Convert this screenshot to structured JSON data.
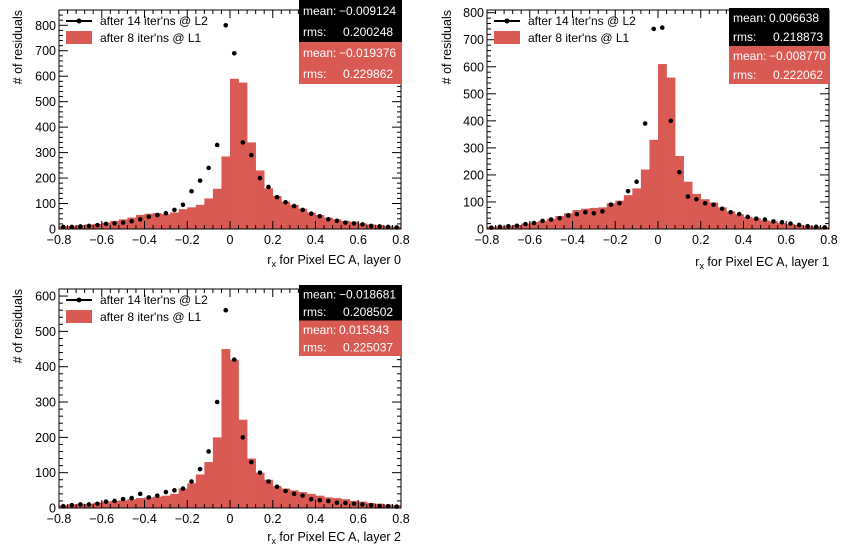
{
  "colors": {
    "hist": "#d95a53",
    "points": "#000000",
    "stats_dark": "#000000",
    "stats_text": "#ffffff"
  },
  "chart_data": [
    {
      "type": "bar",
      "subtype": "histogram-with-points",
      "ylabel": "# of residuals",
      "xlabel_main": "r",
      "xlabel_sub": "x",
      "xlabel_rest": " for Pixel EC A, layer 0",
      "xlim": [
        -0.8,
        0.8
      ],
      "ylim": [
        0,
        860
      ],
      "yticks": [
        0,
        100,
        200,
        300,
        400,
        500,
        600,
        700,
        800
      ],
      "xticks": [
        -0.8,
        -0.6,
        -0.4,
        -0.2,
        0,
        0.2,
        0.4,
        0.6,
        0.8
      ],
      "xtick_labels": [
        "−0.8",
        "−0.6",
        "−0.4",
        "−0.2",
        "0",
        "0.2",
        "0.4",
        "0.6",
        "0.8"
      ],
      "grid": false,
      "legend": {
        "position": "top-left",
        "points_label": "after 14 iter'ns @ L2",
        "hist_label": "after 8 iter'ns @ L1"
      },
      "stats": {
        "points": {
          "mean_label": "mean:",
          "mean": "−0.009124",
          "rms_label": "rms:",
          "rms": "0.200248"
        },
        "hist": {
          "mean_label": "mean:",
          "mean": "−0.019376",
          "rms_label": "rms:",
          "rms": "0.229862"
        }
      },
      "series": [
        {
          "name": "after 8 iter'ns @ L1",
          "kind": "histogram",
          "bin_edges_start": -0.8,
          "bin_width": 0.04,
          "values": [
            12,
            12,
            15,
            18,
            20,
            25,
            32,
            38,
            45,
            55,
            60,
            62,
            58,
            65,
            78,
            85,
            95,
            120,
            158,
            285,
            590,
            575,
            340,
            230,
            160,
            130,
            108,
            95,
            80,
            65,
            55,
            45,
            38,
            32,
            28,
            22,
            18,
            15,
            12,
            10
          ]
        },
        {
          "name": "after 14 iter'ns @ L2",
          "kind": "points",
          "x": [
            -0.78,
            -0.74,
            -0.7,
            -0.66,
            -0.62,
            -0.58,
            -0.54,
            -0.5,
            -0.46,
            -0.42,
            -0.38,
            -0.34,
            -0.3,
            -0.26,
            -0.22,
            -0.18,
            -0.14,
            -0.1,
            -0.06,
            -0.02,
            0.02,
            0.06,
            0.1,
            0.14,
            0.18,
            0.22,
            0.26,
            0.3,
            0.34,
            0.38,
            0.42,
            0.46,
            0.5,
            0.54,
            0.58,
            0.62,
            0.66,
            0.7,
            0.74,
            0.78
          ],
          "y": [
            8,
            8,
            10,
            12,
            15,
            20,
            22,
            25,
            30,
            38,
            48,
            55,
            62,
            75,
            95,
            148,
            190,
            240,
            330,
            800,
            690,
            340,
            290,
            200,
            165,
            125,
            105,
            90,
            75,
            60,
            50,
            38,
            32,
            25,
            22,
            18,
            12,
            10,
            8,
            6
          ]
        }
      ]
    },
    {
      "type": "bar",
      "subtype": "histogram-with-points",
      "ylabel": "# of residuals",
      "xlabel_main": "r",
      "xlabel_sub": "x",
      "xlabel_rest": " for Pixel EC A, layer 1",
      "xlim": [
        -0.8,
        0.8
      ],
      "ylim": [
        0,
        810
      ],
      "yticks": [
        0,
        100,
        200,
        300,
        400,
        500,
        600,
        700,
        800
      ],
      "xticks": [
        -0.8,
        -0.6,
        -0.4,
        -0.2,
        0,
        0.2,
        0.4,
        0.6,
        0.8
      ],
      "xtick_labels": [
        "−0.8",
        "−0.6",
        "−0.4",
        "−0.2",
        "0",
        "0.2",
        "0.4",
        "0.6",
        "0.8"
      ],
      "grid": false,
      "legend": {
        "position": "top-left",
        "points_label": "after 14 iter'ns @ L2",
        "hist_label": "after 8 iter'ns @ L1"
      },
      "stats": {
        "points": {
          "mean_label": "mean:",
          "mean": "0.006638",
          "rms_label": "rms:",
          "rms": "0.218873"
        },
        "hist": {
          "mean_label": "mean:",
          "mean": "−0.008770",
          "rms_label": "rms:",
          "rms": "0.222062"
        }
      },
      "series": [
        {
          "name": "after 8 iter'ns @ L1",
          "kind": "histogram",
          "bin_edges_start": -0.8,
          "bin_width": 0.04,
          "values": [
            8,
            10,
            12,
            15,
            20,
            25,
            30,
            38,
            48,
            58,
            70,
            75,
            78,
            80,
            95,
            105,
            125,
            150,
            220,
            330,
            610,
            560,
            270,
            175,
            130,
            110,
            98,
            80,
            65,
            55,
            45,
            40,
            32,
            28,
            22,
            18,
            15,
            12,
            10,
            8
          ]
        },
        {
          "name": "after 14 iter'ns @ L2",
          "kind": "points",
          "x": [
            -0.78,
            -0.74,
            -0.7,
            -0.66,
            -0.62,
            -0.58,
            -0.54,
            -0.5,
            -0.46,
            -0.42,
            -0.38,
            -0.34,
            -0.3,
            -0.26,
            -0.22,
            -0.18,
            -0.14,
            -0.1,
            -0.06,
            -0.02,
            0.02,
            0.06,
            0.1,
            0.14,
            0.18,
            0.22,
            0.26,
            0.3,
            0.34,
            0.38,
            0.42,
            0.46,
            0.5,
            0.54,
            0.58,
            0.62,
            0.66,
            0.7,
            0.74,
            0.78
          ],
          "y": [
            5,
            8,
            10,
            12,
            18,
            22,
            30,
            35,
            40,
            50,
            55,
            62,
            58,
            65,
            90,
            95,
            140,
            175,
            390,
            740,
            745,
            400,
            210,
            120,
            110,
            95,
            90,
            75,
            62,
            55,
            45,
            38,
            35,
            28,
            25,
            20,
            15,
            10,
            8,
            6
          ]
        }
      ]
    },
    {
      "type": "bar",
      "subtype": "histogram-with-points",
      "ylabel": "# of residuals",
      "xlabel_main": "r",
      "xlabel_sub": "x",
      "xlabel_rest": " for Pixel EC A, layer 2",
      "xlim": [
        -0.8,
        0.8
      ],
      "ylim": [
        0,
        620
      ],
      "yticks": [
        0,
        100,
        200,
        300,
        400,
        500,
        600
      ],
      "xticks": [
        -0.8,
        -0.6,
        -0.4,
        -0.2,
        0,
        0.2,
        0.4,
        0.6,
        0.8
      ],
      "xtick_labels": [
        "−0.8",
        "−0.6",
        "−0.4",
        "−0.2",
        "0",
        "0.2",
        "0.4",
        "0.6",
        "0.8"
      ],
      "grid": false,
      "legend": {
        "position": "top-left",
        "points_label": "after 14 iter'ns @ L2",
        "hist_label": "after 8 iter'ns @ L1"
      },
      "stats": {
        "points": {
          "mean_label": "mean:",
          "mean": "−0.018681",
          "rms_label": "rms:",
          "rms": "0.208502"
        },
        "hist": {
          "mean_label": "mean:",
          "mean": "0.015343",
          "rms_label": "rms:",
          "rms": "0.225037"
        }
      },
      "series": [
        {
          "name": "after 8 iter'ns @ L1",
          "kind": "histogram",
          "bin_edges_start": -0.8,
          "bin_width": 0.04,
          "values": [
            8,
            10,
            12,
            12,
            15,
            18,
            20,
            22,
            25,
            28,
            30,
            32,
            35,
            40,
            55,
            70,
            95,
            130,
            200,
            450,
            420,
            250,
            140,
            100,
            80,
            62,
            55,
            50,
            45,
            40,
            35,
            30,
            28,
            25,
            20,
            18,
            14,
            12,
            10,
            8
          ]
        },
        {
          "name": "after 14 iter'ns @ L2",
          "kind": "points",
          "x": [
            -0.78,
            -0.74,
            -0.7,
            -0.66,
            -0.62,
            -0.58,
            -0.54,
            -0.5,
            -0.46,
            -0.42,
            -0.38,
            -0.34,
            -0.3,
            -0.26,
            -0.22,
            -0.18,
            -0.14,
            -0.1,
            -0.06,
            -0.02,
            0.02,
            0.06,
            0.1,
            0.14,
            0.18,
            0.22,
            0.26,
            0.3,
            0.34,
            0.38,
            0.42,
            0.46,
            0.5,
            0.54,
            0.58,
            0.62,
            0.66,
            0.7,
            0.74,
            0.78
          ],
          "y": [
            5,
            8,
            10,
            10,
            12,
            18,
            20,
            25,
            28,
            40,
            30,
            35,
            45,
            50,
            55,
            75,
            110,
            160,
            300,
            560,
            420,
            200,
            130,
            100,
            75,
            60,
            48,
            40,
            35,
            25,
            22,
            20,
            15,
            14,
            12,
            10,
            8,
            6,
            5,
            4
          ]
        }
      ]
    }
  ]
}
